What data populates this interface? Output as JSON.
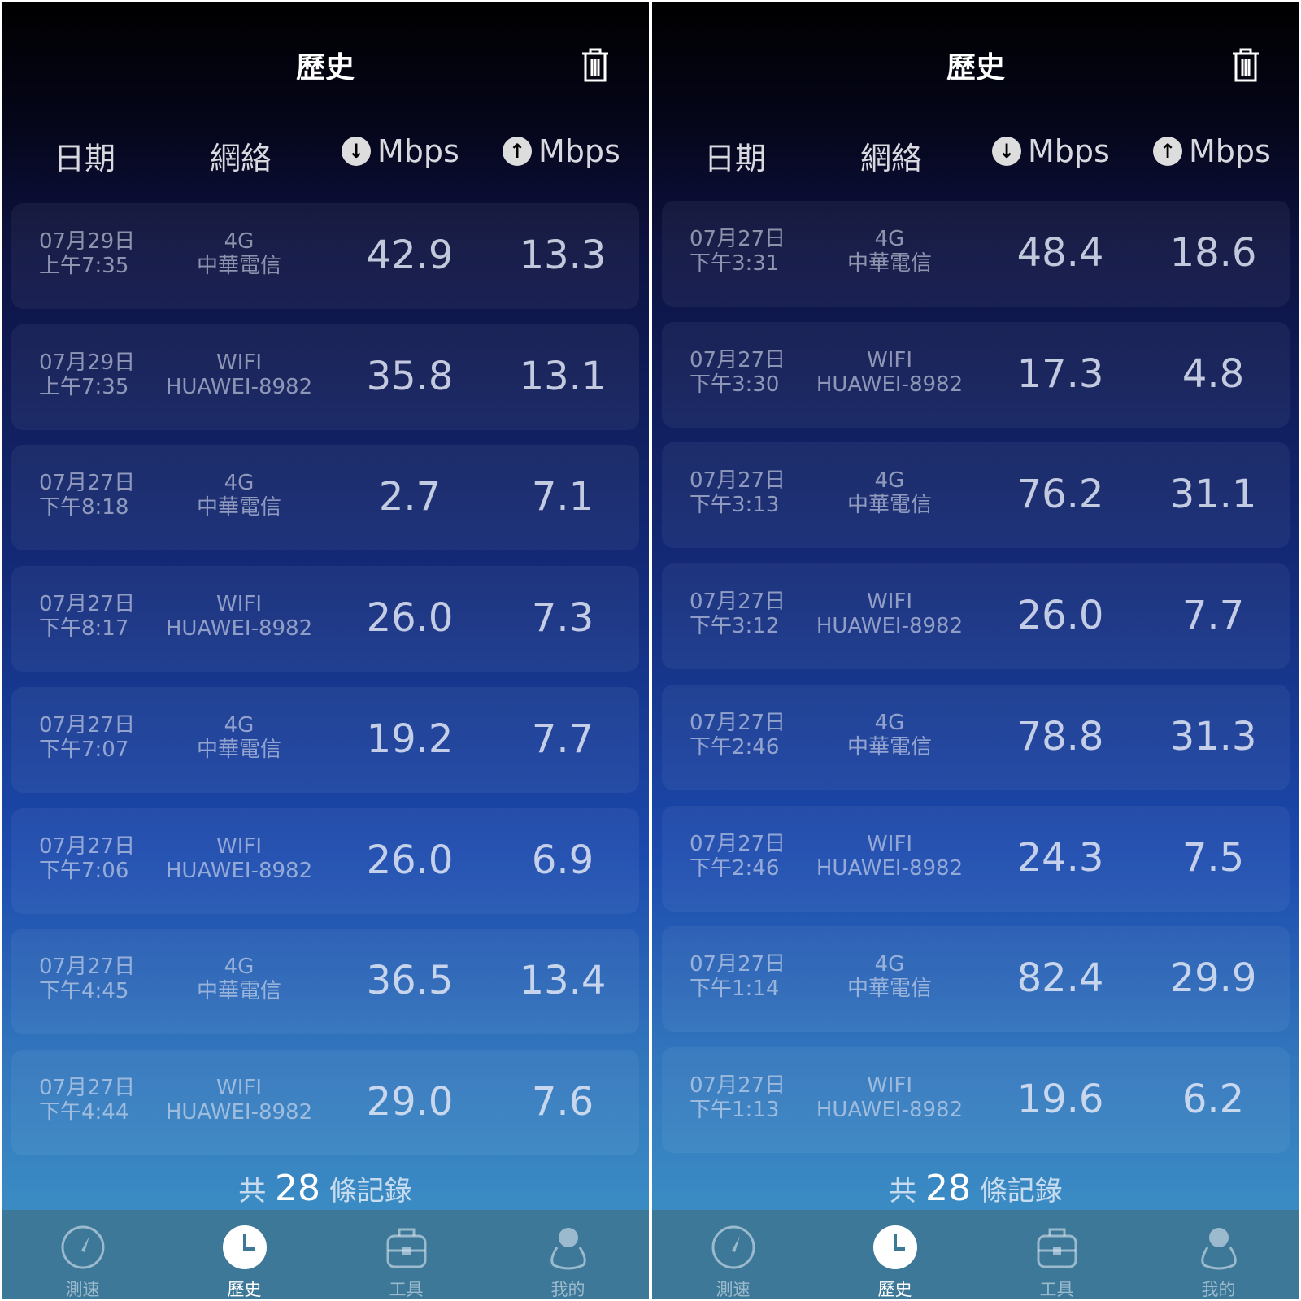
{
  "panels": [
    {
      "title": "歷史",
      "headers": {
        "date": "日期",
        "network": "網絡",
        "download": "Mbps",
        "upload": "Mbps"
      },
      "rows": [
        {
          "date": "07月29日",
          "time": "上午7:35",
          "type": "4G",
          "carrier": "中華電信",
          "download": "42.9",
          "upload": "13.3"
        },
        {
          "date": "07月29日",
          "time": "上午7:35",
          "type": "WIFI",
          "carrier": "HUAWEI-8982",
          "download": "35.8",
          "upload": "13.1"
        },
        {
          "date": "07月27日",
          "time": "下午8:18",
          "type": "4G",
          "carrier": "中華電信",
          "download": "2.7",
          "upload": "7.1"
        },
        {
          "date": "07月27日",
          "time": "下午8:17",
          "type": "WIFI",
          "carrier": "HUAWEI-8982",
          "download": "26.0",
          "upload": "7.3"
        },
        {
          "date": "07月27日",
          "time": "下午7:07",
          "type": "4G",
          "carrier": "中華電信",
          "download": "19.2",
          "upload": "7.7"
        },
        {
          "date": "07月27日",
          "time": "下午7:06",
          "type": "WIFI",
          "carrier": "HUAWEI-8982",
          "download": "26.0",
          "upload": "6.9"
        },
        {
          "date": "07月27日",
          "time": "下午4:45",
          "type": "4G",
          "carrier": "中華電信",
          "download": "36.5",
          "upload": "13.4"
        },
        {
          "date": "07月27日",
          "time": "下午4:44",
          "type": "WIFI",
          "carrier": "HUAWEI-8982",
          "download": "29.0",
          "upload": "7.6"
        }
      ],
      "count": {
        "prefix": "共",
        "value": "28",
        "suffix": "條記錄"
      }
    },
    {
      "title": "歷史",
      "headers": {
        "date": "日期",
        "network": "網絡",
        "download": "Mbps",
        "upload": "Mbps"
      },
      "rows": [
        {
          "date": "07月27日",
          "time": "下午3:31",
          "type": "4G",
          "carrier": "中華電信",
          "download": "48.4",
          "upload": "18.6"
        },
        {
          "date": "07月27日",
          "time": "下午3:30",
          "type": "WIFI",
          "carrier": "HUAWEI-8982",
          "download": "17.3",
          "upload": "4.8"
        },
        {
          "date": "07月27日",
          "time": "下午3:13",
          "type": "4G",
          "carrier": "中華電信",
          "download": "76.2",
          "upload": "31.1"
        },
        {
          "date": "07月27日",
          "time": "下午3:12",
          "type": "WIFI",
          "carrier": "HUAWEI-8982",
          "download": "26.0",
          "upload": "7.7"
        },
        {
          "date": "07月27日",
          "time": "下午2:46",
          "type": "4G",
          "carrier": "中華電信",
          "download": "78.8",
          "upload": "31.3"
        },
        {
          "date": "07月27日",
          "time": "下午2:46",
          "type": "WIFI",
          "carrier": "HUAWEI-8982",
          "download": "24.3",
          "upload": "7.5"
        },
        {
          "date": "07月27日",
          "time": "下午1:14",
          "type": "4G",
          "carrier": "中華電信",
          "download": "82.4",
          "upload": "29.9"
        },
        {
          "date": "07月27日",
          "time": "下午1:13",
          "type": "WIFI",
          "carrier": "HUAWEI-8982",
          "download": "19.6",
          "upload": "6.2"
        }
      ],
      "count": {
        "prefix": "共",
        "value": "28",
        "suffix": "條記錄"
      }
    }
  ],
  "tabs": [
    {
      "label": "測速",
      "icon": "speedometer-icon"
    },
    {
      "label": "歷史",
      "icon": "clock-icon",
      "active": true
    },
    {
      "label": "工具",
      "icon": "toolbox-icon"
    },
    {
      "label": "我的",
      "icon": "user-icon"
    }
  ],
  "icons": {
    "trash": "trash-icon",
    "download": "arrow-down-circle-icon",
    "upload": "arrow-up-circle-icon"
  },
  "colors": {
    "tabbar": "#3d7898",
    "top": "#000000",
    "bottom": "#3a8bc4"
  }
}
